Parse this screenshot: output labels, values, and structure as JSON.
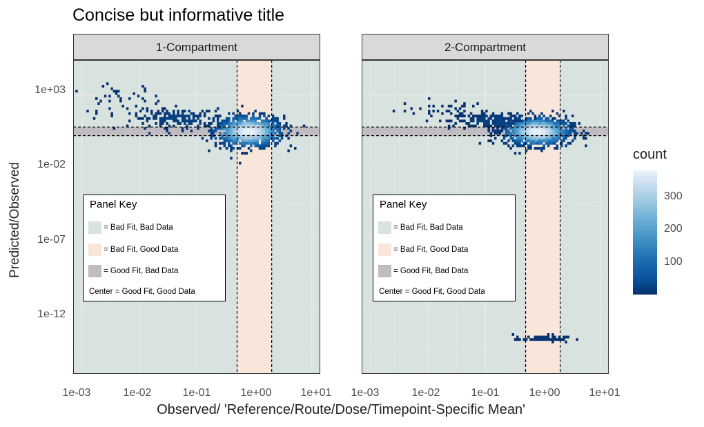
{
  "chart_data": {
    "type": "heatmap",
    "title": "Concise but informative title",
    "xlabel": "Observed/ 'Reference/Route/Dose/Timepoint-Specific Mean'",
    "ylabel": "Predicted/Observed",
    "x_scale": "log10",
    "y_scale": "log10",
    "x_ticks": [
      "1e-03",
      "1e-02",
      "1e-01",
      "1e+00",
      "1e+01"
    ],
    "y_ticks": [
      "1e+03",
      "1e-02",
      "1e-07",
      "1e-12"
    ],
    "xlim": [
      0.0007,
      14
    ],
    "ylim": [
      1e-17,
      100000.0
    ],
    "reference_lines": {
      "x": [
        0.5,
        2
      ],
      "y": [
        0.5,
        2
      ]
    },
    "grid": true,
    "facets": [
      {
        "label": "1-Compartment",
        "blobs": [
          {
            "x_center": 0.8,
            "y_center": 1.0,
            "sx": 0.3,
            "sy": 0.55,
            "n": 900,
            "peak": 380
          },
          {
            "x_center": 0.05,
            "y_center": 8,
            "sx": 0.4,
            "sy": 0.35,
            "n": 180,
            "peak": 30
          },
          {
            "x_center": 0.004,
            "y_center": 200,
            "sx": 0.4,
            "sy": 0.5,
            "n": 40,
            "peak": 10
          }
        ]
      },
      {
        "label": "2-Compartment",
        "blobs": [
          {
            "x_center": 0.8,
            "y_center": 1.0,
            "sx": 0.3,
            "sy": 0.5,
            "n": 900,
            "peak": 380
          },
          {
            "x_center": 0.15,
            "y_center": 5,
            "sx": 0.4,
            "sy": 0.3,
            "n": 220,
            "peak": 30
          },
          {
            "x_center": 0.02,
            "y_center": 30,
            "sx": 0.4,
            "sy": 0.35,
            "n": 40,
            "peak": 10
          },
          {
            "x_center": 1.0,
            "y_center": 3e-15,
            "sx": 0.25,
            "sy": 0.1,
            "n": 60,
            "peak": 15
          }
        ]
      }
    ],
    "legend": {
      "title": "count",
      "ticks": [
        100,
        200,
        300
      ],
      "range": [
        1,
        380
      ],
      "position": "right"
    },
    "panel_key": {
      "title": "Panel Key",
      "items": [
        {
          "label": "= Bad Fit, Bad Data",
          "color": "#d8e2de"
        },
        {
          "label": "= Bad Fit, Good Data",
          "color": "#f7e6d9"
        },
        {
          "label": "= Good Fit, Bad Data",
          "color": "#c0bcc2"
        }
      ],
      "center_label": "Center = Good Fit, Good Data"
    },
    "colors": {
      "bad_fit_bad_data": "#d8e2de",
      "bad_fit_good_data": "#f7e6d9",
      "good_fit_bad_data": "#c0bcc2",
      "grid": "#ebebeb",
      "count_low": "#08306b",
      "count_high": "#eaf3fb"
    }
  }
}
